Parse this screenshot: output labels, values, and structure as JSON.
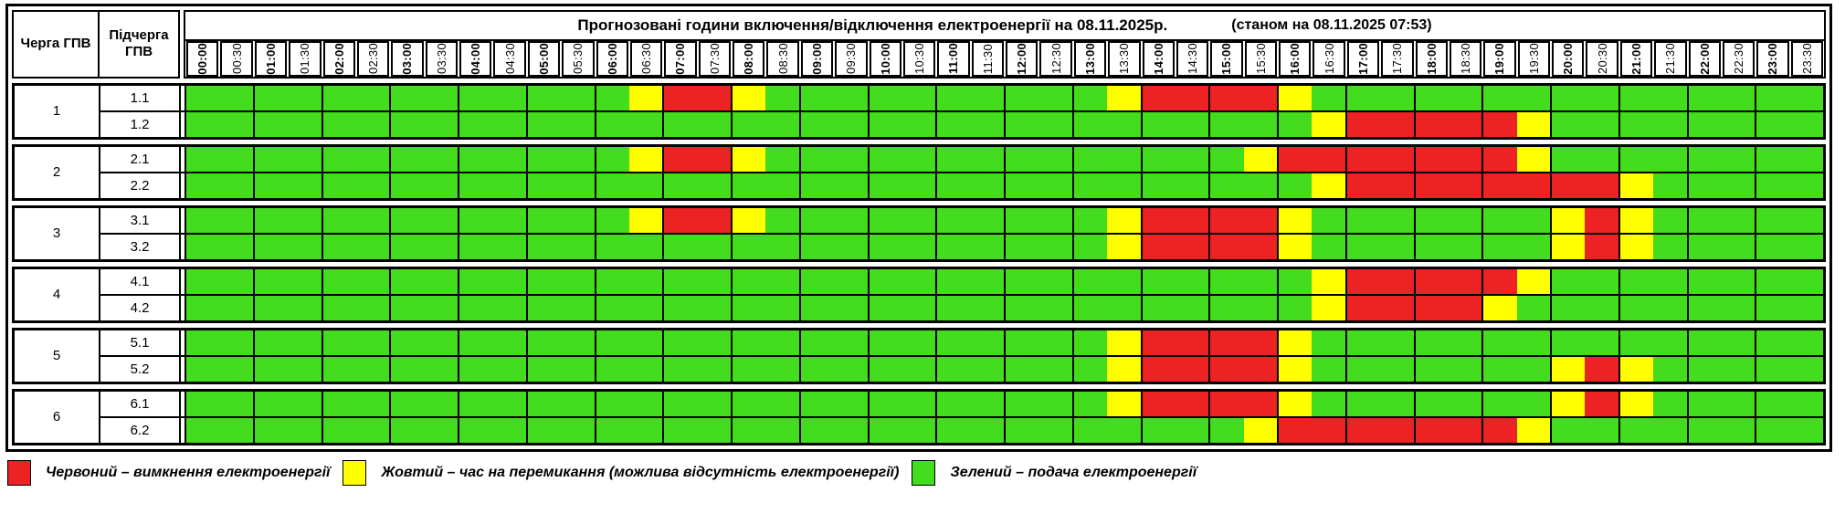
{
  "title": "Прогнозовані години включення/відключення електроенергії на 08.11.2025р.",
  "subtitle": "(станом на 08.11.2025 07:53)",
  "header": {
    "queue_col": "Черга ГПВ",
    "subqueue_col": "Підчерга ГПВ"
  },
  "colors": {
    "G": "#44DC1E",
    "Y": "#FFFF00",
    "R": "#ED2224"
  },
  "legend": [
    {
      "color": "R",
      "label": "Червоний – вимкнення електроенергії"
    },
    {
      "color": "Y",
      "label": "Жовтий – час на перемикання (можлива відсутність електроенергії)"
    },
    {
      "color": "G",
      "label": "Зелений – подача електроенергії"
    }
  ],
  "chart_data": {
    "type": "heatmap",
    "title": "Прогнозовані години включення/відключення електроенергії на 08.11.2025р.",
    "status_time": "(станом на 08.11.2025 07:53)",
    "x": [
      "00:00",
      "00:30",
      "01:00",
      "01:30",
      "02:00",
      "02:30",
      "03:00",
      "03:30",
      "04:00",
      "04:30",
      "05:00",
      "05:30",
      "06:00",
      "06:30",
      "07:00",
      "07:30",
      "08:00",
      "08:30",
      "09:00",
      "09:30",
      "10:00",
      "10:30",
      "11:00",
      "11:30",
      "12:00",
      "12:30",
      "13:00",
      "13:30",
      "14:00",
      "14:30",
      "15:00",
      "15:30",
      "16:00",
      "16:30",
      "17:00",
      "17:30",
      "18:00",
      "18:30",
      "19:00",
      "19:30",
      "20:00",
      "20:30",
      "21:00",
      "21:30",
      "22:00",
      "22:30",
      "23:00",
      "23:30"
    ],
    "value_legend": {
      "G": "подача електроенергії",
      "Y": "час на перемикання",
      "R": "вимкнення електроенергії"
    },
    "groups": [
      {
        "queue": "1",
        "rows": [
          {
            "label": "1.1",
            "slots": "GGGGGGGGGGGGGYRRYGGGGGGGGGGYRRRRYGGGGGGGGGGGGGGG"
          },
          {
            "label": "1.2",
            "slots": "GGGGGGGGGGGGGGGGGGGGGGGGGGGGGGGGGYRRRRRYGGGGGGGG"
          }
        ]
      },
      {
        "queue": "2",
        "rows": [
          {
            "label": "2.1",
            "slots": "GGGGGGGGGGGGGYRRYGGGGGGGGGGGGGGYRRRRRRRYGGGGGGGG"
          },
          {
            "label": "2.2",
            "slots": "GGGGGGGGGGGGGGGGGGGGGGGGGGGGGGGGGYRRRRRRRRYGGGGG"
          }
        ]
      },
      {
        "queue": "3",
        "rows": [
          {
            "label": "3.1",
            "slots": "GGGGGGGGGGGGGYRRYGGGGGGGGGGYRRRRYGGGGGGGYRYGGGGG"
          },
          {
            "label": "3.2",
            "slots": "GGGGGGGGGGGGGGGGGGGGGGGGGGGYRRRRYGGGGGGGYRYGGGGG"
          }
        ]
      },
      {
        "queue": "4",
        "rows": [
          {
            "label": "4.1",
            "slots": "GGGGGGGGGGGGGGGGGGGGGGGGGGGGGGGGGYRRRRRYGGGGGGGG"
          },
          {
            "label": "4.2",
            "slots": "GGGGGGGGGGGGGGGGGGGGGGGGGGGGGGGGGYRRRRYGGGGGGGGG"
          }
        ]
      },
      {
        "queue": "5",
        "rows": [
          {
            "label": "5.1",
            "slots": "GGGGGGGGGGGGGGGGGGGGGGGGGGGYRRRRYGGGGGGGGGGGGGGG"
          },
          {
            "label": "5.2",
            "slots": "GGGGGGGGGGGGGGGGGGGGGGGGGGGYRRRRYGGGGGGGYRYGGGGG"
          }
        ]
      },
      {
        "queue": "6",
        "rows": [
          {
            "label": "6.1",
            "slots": "GGGGGGGGGGGGGGGGGGGGGGGGGGGYRRRRYGGGGGGGYRYGGGGG"
          },
          {
            "label": "6.2",
            "slots": "GGGGGGGGGGGGGGGGGGGGGGGGGGGGGGGYRRRRRRRYGGGGGGGG"
          }
        ]
      }
    ]
  }
}
